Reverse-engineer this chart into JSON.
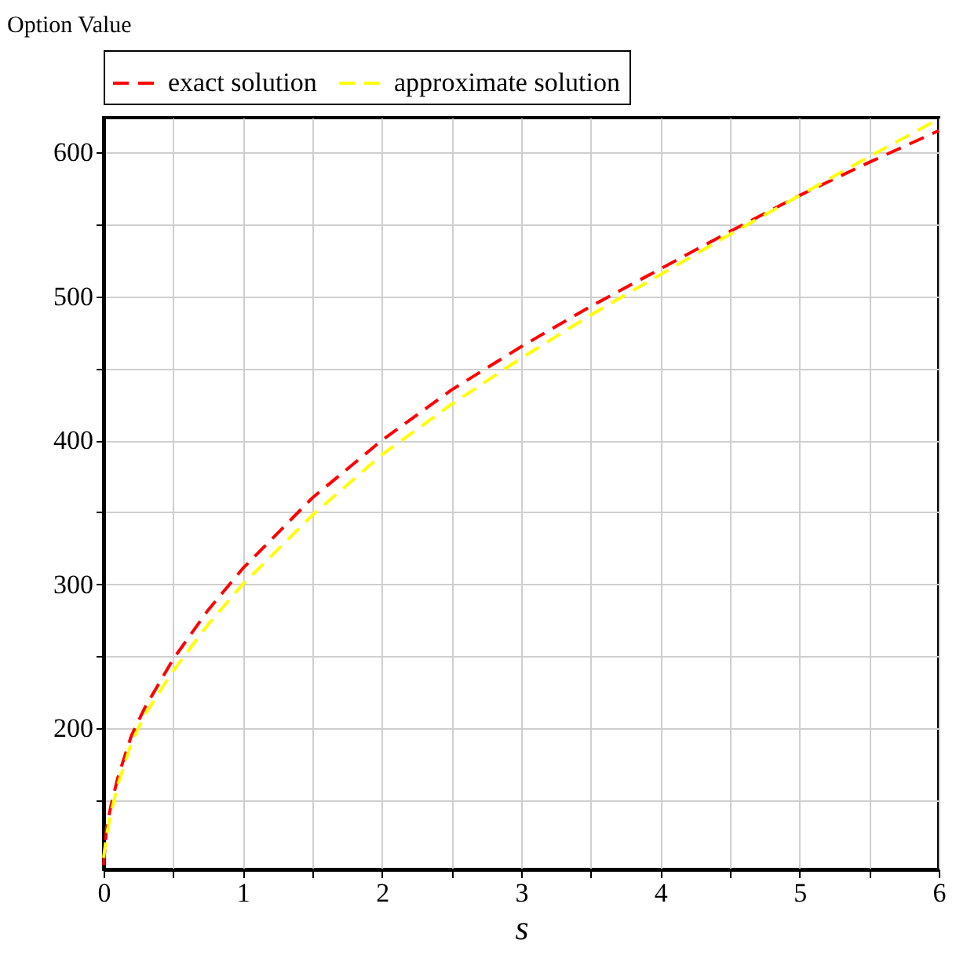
{
  "chart_data": {
    "type": "line",
    "ylabel": "Option Value",
    "xlabel": "s",
    "x": [
      0,
      0.02,
      0.05,
      0.1,
      0.2,
      0.3,
      0.5,
      0.75,
      1,
      1.5,
      2,
      2.5,
      3,
      3.5,
      4,
      4.5,
      5,
      5.5,
      6
    ],
    "series": [
      {
        "name": "exact solution",
        "color": "#ff0000",
        "values": [
          105,
          130,
          145,
          165,
          195,
          215,
          248,
          282,
          311,
          360,
          400,
          435,
          465,
          493,
          519,
          545,
          570,
          593,
          615
        ]
      },
      {
        "name": "approximate solution",
        "color": "#ffff00",
        "values": [
          110,
          125,
          140,
          160,
          190,
          210,
          240,
          272,
          300,
          348,
          390,
          425,
          457,
          487,
          515,
          543,
          570,
          597,
          623
        ]
      }
    ],
    "xlim": [
      0,
      6
    ],
    "xticks": [
      0,
      {
        "value": 0.5,
        "label": null
      },
      1,
      {
        "value": 1.5,
        "label": null
      },
      2,
      {
        "value": 2.5,
        "label": null
      },
      3,
      {
        "value": 3.5,
        "label": null
      },
      4,
      {
        "value": 4.5,
        "label": null
      },
      5,
      {
        "value": 5.5,
        "label": null
      },
      6
    ],
    "ylim": [
      102,
      624
    ],
    "yticks": [
      {
        "value": 150,
        "label": null
      },
      200,
      {
        "value": 250,
        "label": null
      },
      300,
      {
        "value": 350,
        "label": null
      },
      400,
      {
        "value": 450,
        "label": null
      },
      500,
      {
        "value": 550,
        "label": null
      },
      600
    ],
    "grid": true,
    "legend": "top",
    "line_style": "dashed",
    "marker": "none"
  }
}
